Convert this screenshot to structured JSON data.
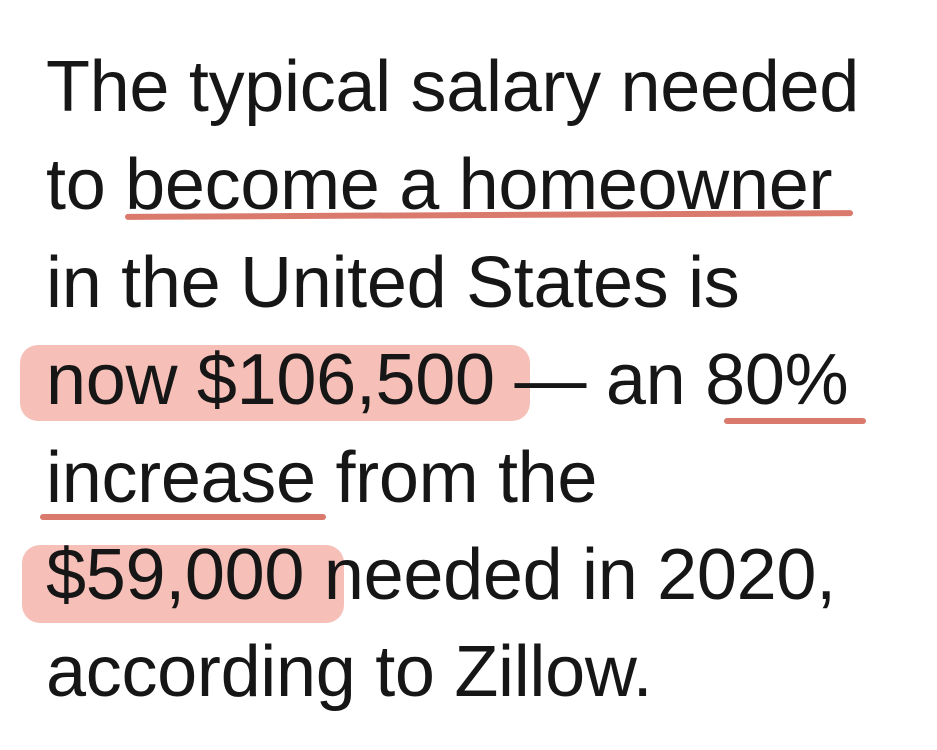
{
  "text": {
    "lines": [
      "The typical salary needed",
      "to become a homeowner",
      "in the United States is",
      "now $106,500 — an 80%",
      "increase from the",
      "$59,000 needed in 2020,",
      "according to Zillow."
    ]
  },
  "annotations": {
    "underlines": [
      "become a homeowner",
      "80% increase"
    ],
    "highlights": [
      "now $106,500",
      "$59,000"
    ],
    "highlight_color": "#f5b9b0",
    "underline_color": "#d97a6c"
  }
}
